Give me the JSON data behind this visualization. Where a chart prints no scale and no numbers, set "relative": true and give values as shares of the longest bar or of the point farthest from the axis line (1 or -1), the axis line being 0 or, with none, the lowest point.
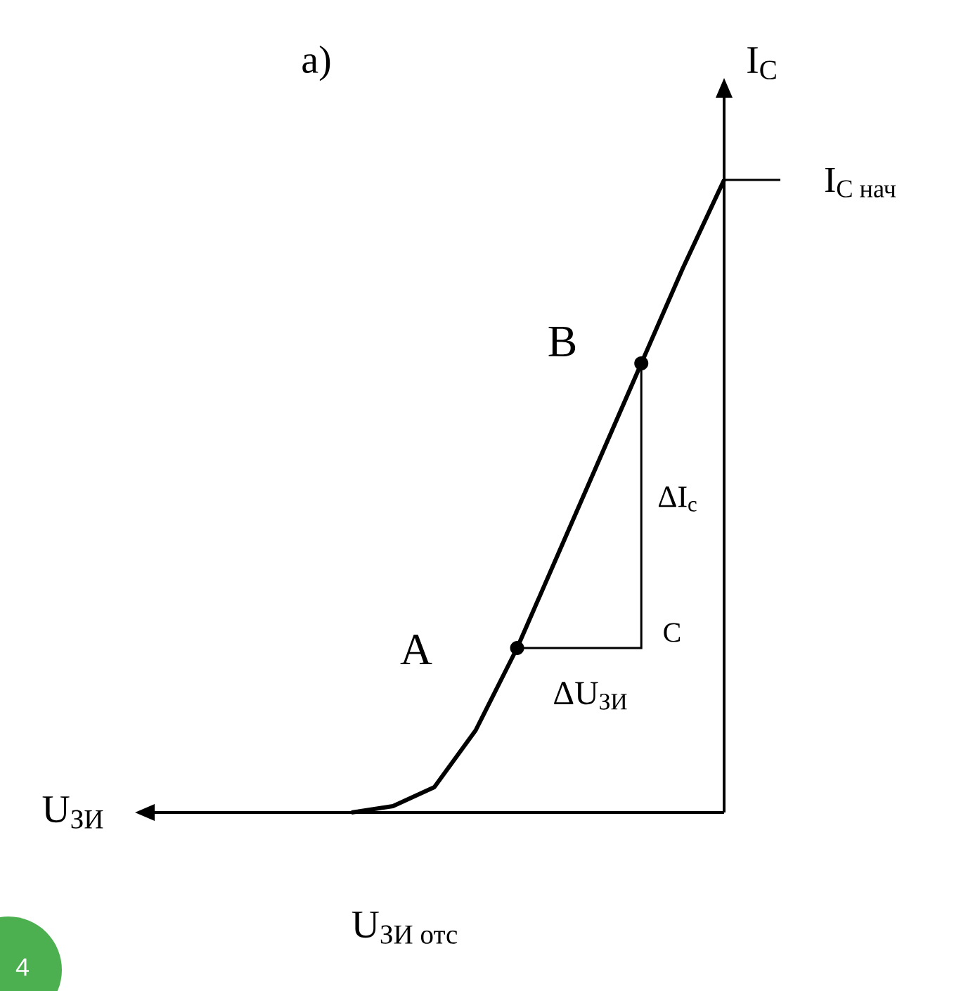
{
  "chart_data": {
    "type": "line",
    "title": "а)",
    "ylabel": "I$_{C}$",
    "relative": true,
    "categories": [
      null,
      null,
      null,
      null,
      null,
      null,
      null,
      null,
      null,
      null
    ],
    "series": [
      {
        "color": "#000000",
        "line_style": "solid",
        "values": [
          0,
          0.01,
          0.04,
          0.13,
          0.26,
          0.41,
          0.56,
          0.71,
          0.86,
          1
        ]
      }
    ],
    "annotations": [
      "A",
      "B",
      "C",
      "ΔI$_{c}$",
      "ΔU$_{ЗИ}$",
      "\\mathrm{U}_{\\text{ЗИ отс}}",
      "4",
      "\\mathrm{I}_{\\text{C нач}}",
      "U$_{ЗИ}$"
    ]
  }
}
